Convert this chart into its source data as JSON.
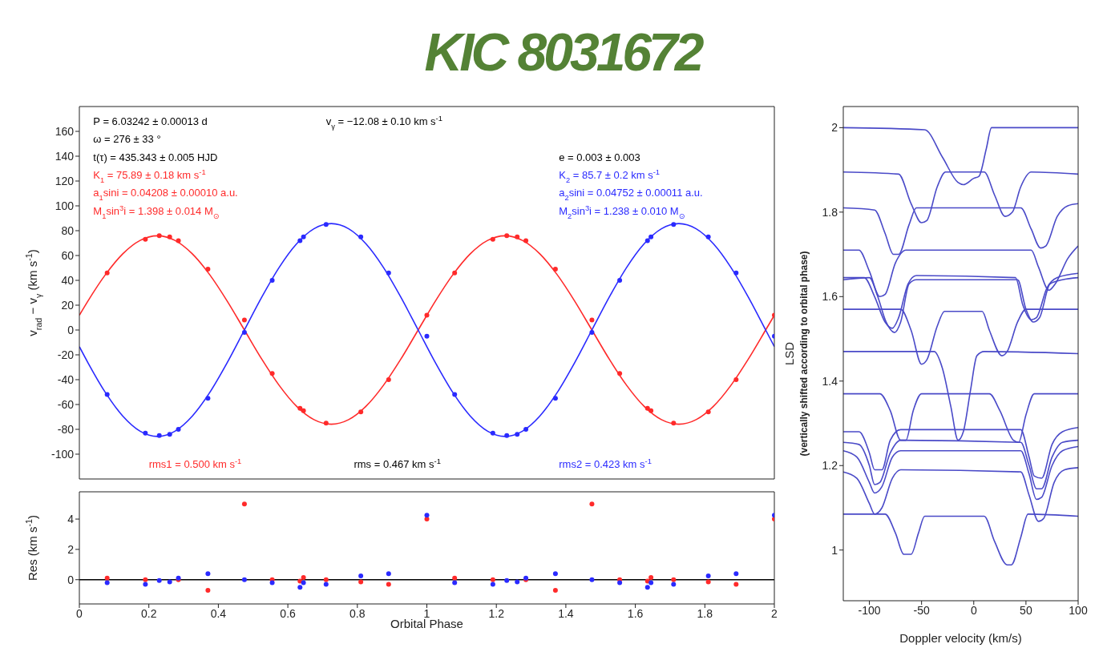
{
  "chart_data": [
    {
      "type": "line",
      "title": "KIC 8031672",
      "ylabel": "v$_{rad}$ − v$_{γ}$ (km s$^{-1}$)",
      "xlim": [
        0,
        2
      ],
      "xticks": [
        0,
        0.2,
        0.4,
        0.6,
        0.8,
        1,
        1.2,
        1.4,
        1.6,
        1.8,
        2
      ],
      "ylim": [
        -120,
        180
      ],
      "yticks": [
        -100,
        -80,
        -60,
        -40,
        -20,
        0,
        20,
        40,
        60,
        80,
        100,
        120,
        140,
        160
      ],
      "tick_labels": "y",
      "annotations": [
        "P = 6.03242 ± 0.00013 d",
        "ω = 276 ± 33 °",
        "t(τ) = 435.343 ± 0.005 HJD",
        "K$_{1}$ = 75.89 ± 0.18 km s$^{-1}$",
        "a$_{1}$sini = 0.04208 ± 0.00010 a.u.",
        "M$_{1}$sin$^{3}$i = 1.398 ± 0.014 M$_{⊙}$",
        "v$_{γ}$ = −12.08 ± 0.10 km s$^{-1}$",
        "e = 0.003 ± 0.003",
        "K$_{2}$ = 85.7 ± 0.2 km s$^{-1}$",
        "a$_{2}$sini = 0.04752 ± 0.00011 a.u.",
        "M$_{2}$sin$^{3}$i = 1.238 ± 0.010 M$_{⊙}$",
        "rms1 = 0.500 km s$^{-1}$",
        "rms = 0.467 km s$^{-1}$",
        "rms2 = 0.423 km s$^{-1}$"
      ],
      "series": [
        {
          "marker": "none",
          "color": "#ff2a2a",
          "x": [
            0,
            0.025,
            0.075,
            0.125,
            0.175,
            0.225,
            0.275,
            0.325,
            0.375,
            0.425,
            0.475,
            0.525,
            0.575,
            0.625,
            0.675,
            0.725,
            0.775,
            0.825,
            0.875,
            0.925,
            0.975,
            1.025,
            1.075,
            1.125,
            1.175,
            1.225,
            1.275,
            1.325,
            1.375,
            1.425,
            1.475,
            1.525,
            1.575,
            1.625,
            1.675,
            1.725,
            1.775,
            1.825,
            1.875,
            1.925,
            1.975,
            2
          ],
          "values": [
            11.9,
            23.5,
            44.6,
            61.4,
            72.2,
            75.9,
            72.2,
            61.4,
            44.6,
            23.5,
            0,
            -23.5,
            -44.6,
            -61.4,
            -72.2,
            -75.9,
            -72.2,
            -61.4,
            -44.6,
            -23.5,
            0,
            23.5,
            44.6,
            61.4,
            72.2,
            75.9,
            72.2,
            61.4,
            44.6,
            23.5,
            0,
            -23.5,
            -44.6,
            -61.4,
            -72.2,
            -75.9,
            -72.2,
            -61.4,
            -44.6,
            -23.5,
            0,
            11.9
          ]
        },
        {
          "marker": "none",
          "color": "#2a2aff",
          "x": [
            0,
            0.025,
            0.075,
            0.125,
            0.175,
            0.225,
            0.275,
            0.325,
            0.375,
            0.425,
            0.475,
            0.525,
            0.575,
            0.625,
            0.675,
            0.725,
            0.775,
            0.825,
            0.875,
            0.925,
            0.975,
            1.025,
            1.075,
            1.125,
            1.175,
            1.225,
            1.275,
            1.325,
            1.375,
            1.425,
            1.475,
            1.525,
            1.575,
            1.625,
            1.675,
            1.725,
            1.775,
            1.825,
            1.875,
            1.925,
            1.975,
            2
          ],
          "values": [
            -13.4,
            -26.5,
            -50.4,
            -69.3,
            -81.5,
            -85.7,
            -81.5,
            -69.3,
            -50.4,
            -26.5,
            0,
            26.5,
            50.4,
            69.3,
            81.5,
            85.7,
            81.5,
            69.3,
            50.4,
            26.5,
            0,
            -26.5,
            -50.4,
            -69.3,
            -81.5,
            -85.7,
            -81.5,
            -69.3,
            -50.4,
            -26.5,
            0,
            26.5,
            50.4,
            69.3,
            81.5,
            85.7,
            81.5,
            69.3,
            50.4,
            26.5,
            0,
            -13.4
          ]
        },
        {
          "type": "scatter",
          "marker": "circle",
          "color": "#ff2a2a",
          "x": [
            0.08,
            0.19,
            0.23,
            0.26,
            0.285,
            0.37,
            0.475,
            0.555,
            0.635,
            0.645,
            0.71,
            0.81,
            0.89,
            1.0,
            1.08,
            1.19,
            1.23,
            1.26,
            1.285,
            1.37,
            1.475,
            1.555,
            1.635,
            1.645,
            1.71,
            1.81,
            1.89,
            2.0
          ],
          "values": [
            46,
            73,
            76,
            75,
            72,
            49,
            8,
            -35,
            -63,
            -65,
            -75,
            -66,
            -40,
            12,
            46,
            73,
            76,
            75,
            72,
            49,
            8,
            -35,
            -63,
            -65,
            -75,
            -66,
            -40,
            12
          ]
        },
        {
          "type": "scatter",
          "marker": "circle",
          "color": "#2a2aff",
          "x": [
            0.08,
            0.19,
            0.23,
            0.26,
            0.285,
            0.37,
            0.475,
            0.555,
            0.635,
            0.645,
            0.71,
            0.81,
            0.89,
            1.0,
            1.08,
            1.19,
            1.23,
            1.26,
            1.285,
            1.37,
            1.475,
            1.555,
            1.635,
            1.645,
            1.71,
            1.81,
            1.89,
            2.0
          ],
          "values": [
            -52,
            -83,
            -85,
            -84,
            -80,
            -55,
            -2,
            40,
            72,
            75,
            85,
            75,
            46,
            -5,
            -52,
            -83,
            -85,
            -84,
            -80,
            -55,
            -2,
            40,
            72,
            75,
            85,
            75,
            46,
            -5
          ]
        }
      ]
    },
    {
      "type": "scatter",
      "xlabel": "Orbital Phase",
      "ylabel": "Res (km s$^{-1}$)",
      "xlim": [
        0,
        2
      ],
      "xticks": [
        0,
        0.2,
        0.4,
        0.6,
        0.8,
        1,
        1.2,
        1.4,
        1.6,
        1.8,
        2
      ],
      "ylim": [
        -1.6,
        5.8
      ],
      "yticks": [
        0,
        2,
        4
      ],
      "ref_lines": [
        {
          "axis": "y",
          "value": 0,
          "color": "#000000"
        }
      ],
      "x": [
        0.08,
        0.19,
        0.23,
        0.26,
        0.285,
        0.37,
        0.475,
        0.555,
        0.635,
        0.645,
        0.71,
        0.81,
        0.89,
        1.0,
        1.08,
        1.19,
        1.23,
        1.26,
        1.285,
        1.37,
        1.475,
        1.555,
        1.635,
        1.645,
        1.71,
        1.81,
        1.89,
        2.0
      ],
      "series": [
        {
          "marker": "circle",
          "color": "#ff2a2a",
          "values": [
            0.1,
            0,
            null,
            null,
            0,
            -0.7,
            5.0,
            0,
            -0.1,
            0.15,
            0,
            -0.15,
            -0.3,
            4.0,
            0.1,
            0,
            null,
            null,
            0,
            -0.7,
            5.0,
            0,
            -0.1,
            0.15,
            0,
            -0.15,
            -0.3,
            4.0
          ]
        },
        {
          "marker": "circle",
          "color": "#2a2aff",
          "values": [
            -0.2,
            -0.3,
            -0.05,
            -0.15,
            0.1,
            0.4,
            0,
            -0.2,
            -0.5,
            -0.2,
            -0.3,
            0.25,
            0.4,
            4.25,
            -0.2,
            -0.3,
            -0.05,
            -0.15,
            0.1,
            0.4,
            0,
            -0.2,
            -0.5,
            -0.2,
            -0.3,
            0.25,
            0.4,
            4.25
          ]
        }
      ]
    },
    {
      "type": "line",
      "xlabel": "Doppler velocity (km/s)",
      "ylabel": "LSD\n(vertically shifted according to orbital phase)",
      "xlim": [
        -125,
        100
      ],
      "xticks": [
        -100,
        -50,
        0,
        50,
        100
      ],
      "ylim": [
        0.88,
        2.05
      ],
      "yticks": [
        1,
        1.2,
        1.4,
        1.6,
        1.8,
        2
      ],
      "series": [
        {
          "color": "#4a4ac8",
          "x": [
            -125,
            -47,
            -30,
            -15,
            -10,
            0,
            5,
            12,
            17,
            100
          ],
          "values": [
            2.0,
            1.995,
            1.93,
            1.87,
            1.865,
            1.88,
            1.885,
            1.95,
            2.0,
            2.0
          ]
        },
        {
          "color": "#4a4ac8",
          "x": [
            -125,
            -72,
            -60,
            -50,
            -45,
            -35,
            -27,
            10,
            20,
            30,
            37,
            45,
            55,
            100
          ],
          "values": [
            1.895,
            1.89,
            1.82,
            1.775,
            1.78,
            1.86,
            1.895,
            1.895,
            1.84,
            1.79,
            1.8,
            1.86,
            1.895,
            1.89
          ]
        },
        {
          "color": "#4a4ac8",
          "x": [
            -125,
            -95,
            -85,
            -77,
            -72,
            -62,
            -55,
            45,
            55,
            64,
            69,
            80,
            90,
            100
          ],
          "values": [
            1.81,
            1.805,
            1.75,
            1.7,
            1.7,
            1.77,
            1.81,
            1.81,
            1.76,
            1.715,
            1.72,
            1.79,
            1.815,
            1.82
          ]
        },
        {
          "color": "#4a4ac8",
          "x": [
            -125,
            -110,
            -100,
            -90,
            -85,
            -75,
            -65,
            55,
            62,
            72,
            78,
            90,
            100
          ],
          "values": [
            1.71,
            1.71,
            1.66,
            1.6,
            1.605,
            1.68,
            1.71,
            1.71,
            1.67,
            1.615,
            1.63,
            1.69,
            1.72
          ]
        },
        {
          "color": "#4a4ac8",
          "x": [
            -125,
            -105,
            -95,
            -85,
            -78,
            -72,
            -63,
            -55,
            40,
            47,
            55,
            60,
            70,
            80,
            100
          ],
          "values": [
            1.645,
            1.645,
            1.6,
            1.54,
            1.525,
            1.55,
            1.63,
            1.65,
            1.645,
            1.58,
            1.545,
            1.55,
            1.62,
            1.645,
            1.655
          ]
        },
        {
          "color": "#4a4ac8",
          "x": [
            -125,
            -100,
            -92,
            -84,
            -76,
            -70,
            -62,
            -55,
            42,
            50,
            57,
            63,
            73,
            85,
            100
          ],
          "values": [
            1.64,
            1.645,
            1.6,
            1.54,
            1.515,
            1.54,
            1.63,
            1.64,
            1.64,
            1.57,
            1.54,
            1.55,
            1.63,
            1.64,
            1.645
          ]
        },
        {
          "color": "#4a4ac8",
          "x": [
            -125,
            -70,
            -60,
            -50,
            -45,
            -35,
            -28,
            8,
            15,
            27,
            32,
            42,
            50,
            100
          ],
          "values": [
            1.57,
            1.57,
            1.52,
            1.44,
            1.45,
            1.53,
            1.565,
            1.565,
            1.52,
            1.46,
            1.47,
            1.54,
            1.57,
            1.57
          ]
        },
        {
          "color": "#4a4ac8",
          "x": [
            -125,
            -38,
            -30,
            -22,
            -15,
            -10,
            -3,
            3,
            10,
            100
          ],
          "values": [
            1.47,
            1.47,
            1.43,
            1.34,
            1.26,
            1.28,
            1.38,
            1.46,
            1.47,
            1.465
          ]
        },
        {
          "color": "#4a4ac8",
          "x": [
            -125,
            -90,
            -80,
            -70,
            -65,
            -58,
            -50,
            15,
            25,
            38,
            43,
            50,
            58,
            100
          ],
          "values": [
            1.37,
            1.37,
            1.33,
            1.26,
            1.26,
            1.33,
            1.37,
            1.37,
            1.33,
            1.26,
            1.255,
            1.32,
            1.37,
            1.37
          ]
        },
        {
          "color": "#4a4ac8",
          "x": [
            -125,
            -110,
            -100,
            -95,
            -88,
            -80,
            -70,
            45,
            53,
            58,
            65,
            75,
            85,
            100
          ],
          "values": [
            1.28,
            1.28,
            1.23,
            1.19,
            1.19,
            1.26,
            1.285,
            1.285,
            1.22,
            1.175,
            1.17,
            1.25,
            1.28,
            1.29
          ]
        },
        {
          "color": "#4a4ac8",
          "x": [
            -125,
            -110,
            -100,
            -95,
            -90,
            -80,
            -70,
            45,
            53,
            60,
            65,
            75,
            85,
            100
          ],
          "values": [
            1.255,
            1.25,
            1.2,
            1.155,
            1.16,
            1.23,
            1.26,
            1.255,
            1.2,
            1.145,
            1.145,
            1.22,
            1.255,
            1.26
          ]
        },
        {
          "color": "#4a4ac8",
          "x": [
            -125,
            -112,
            -100,
            -95,
            -88,
            -78,
            -70,
            45,
            53,
            60,
            65,
            75,
            85,
            100
          ],
          "values": [
            1.235,
            1.22,
            1.16,
            1.135,
            1.15,
            1.22,
            1.235,
            1.235,
            1.18,
            1.12,
            1.125,
            1.2,
            1.235,
            1.245
          ]
        },
        {
          "color": "#4a4ac8",
          "x": [
            -125,
            -112,
            -100,
            -95,
            -88,
            -78,
            -70,
            45,
            53,
            62,
            67,
            77,
            87,
            100
          ],
          "values": [
            1.185,
            1.17,
            1.11,
            1.085,
            1.1,
            1.17,
            1.19,
            1.185,
            1.13,
            1.068,
            1.075,
            1.16,
            1.19,
            1.195
          ]
        },
        {
          "color": "#4a4ac8",
          "x": [
            -125,
            -85,
            -75,
            -67,
            -60,
            -53,
            -47,
            10,
            20,
            32,
            36,
            45,
            52,
            100
          ],
          "values": [
            1.085,
            1.085,
            1.04,
            0.99,
            0.99,
            1.04,
            1.08,
            1.08,
            1.02,
            0.965,
            0.965,
            1.03,
            1.085,
            1.08
          ]
        }
      ]
    }
  ]
}
